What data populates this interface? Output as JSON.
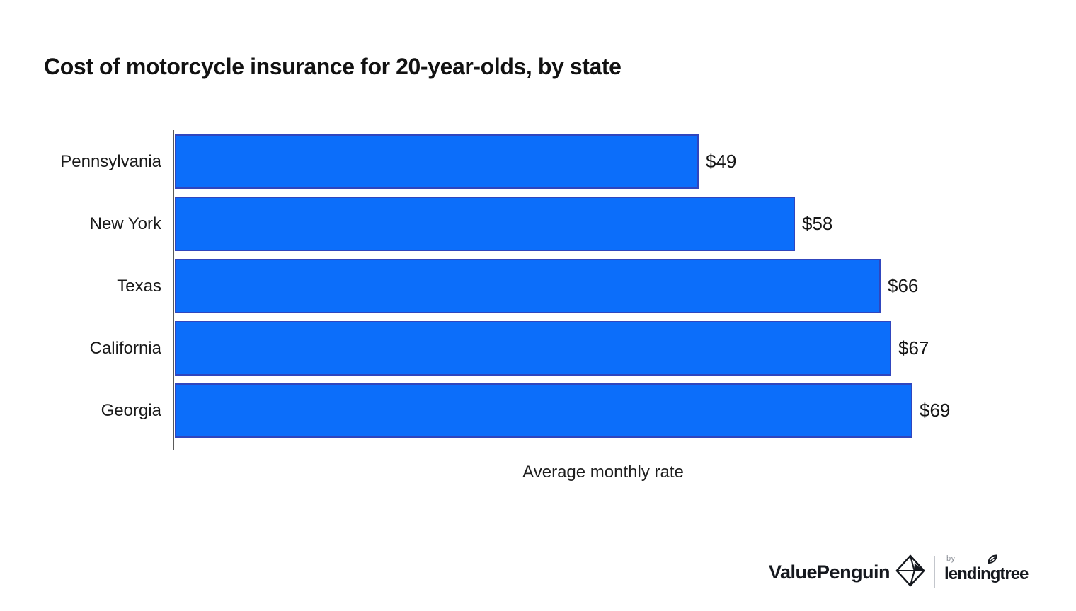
{
  "title": "Cost of motorcycle insurance for 20-year-olds, by state",
  "chart_data": {
    "type": "bar",
    "orientation": "horizontal",
    "title": "Cost of motorcycle insurance for 20-year-olds, by state",
    "categories": [
      "Pennsylvania",
      "New York",
      "Texas",
      "California",
      "Georgia"
    ],
    "values": [
      49,
      58,
      66,
      67,
      69
    ],
    "value_labels": [
      "$49",
      "$58",
      "$66",
      "$67",
      "$69"
    ],
    "xlabel": "Average monthly rate",
    "ylabel": "",
    "x_baseline": 0,
    "xlim": [
      0,
      80
    ],
    "grid": false,
    "legend": false,
    "bar_color": "#0c6efa",
    "bar_border_color": "#3046be",
    "axis_line_color": "#5a5a5a",
    "label_color": "#1a1a1a"
  },
  "footer": {
    "valuepenguin_label": "ValuePenguin",
    "by_label": "by",
    "lendingtree_label": "lendingtree",
    "brand_text_color": "#15181e"
  },
  "icons": {
    "penguin_diamond_icon": "origami-penguin-diamond",
    "leaf_icon": "lendingtree-leaf"
  }
}
